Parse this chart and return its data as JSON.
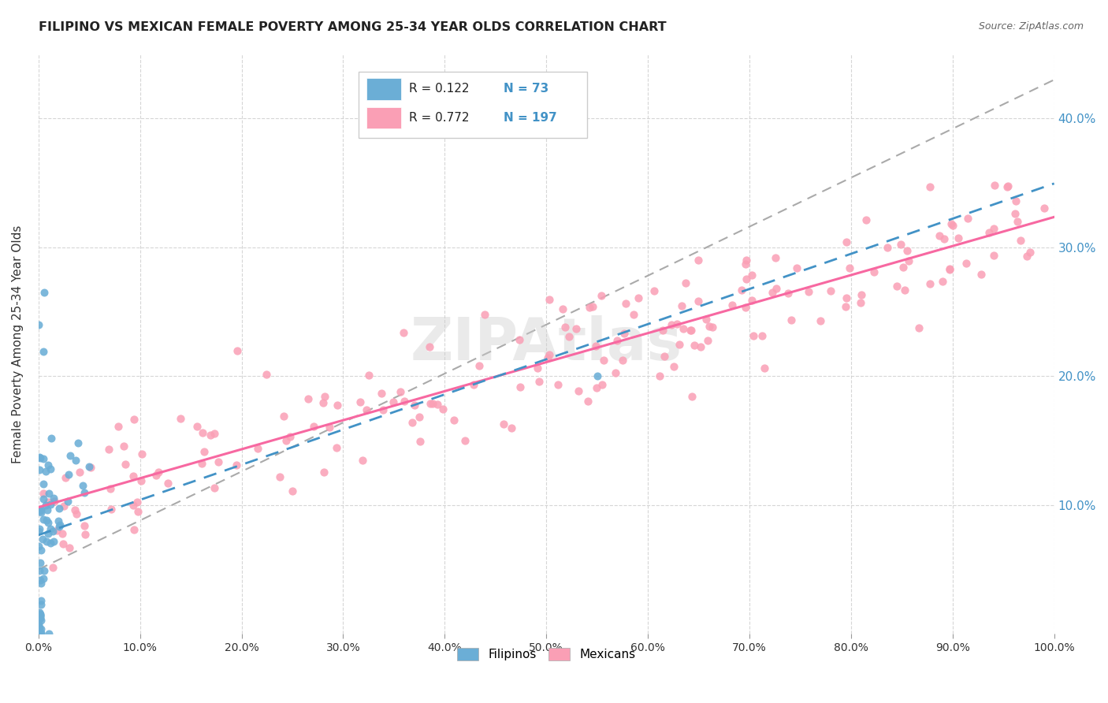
{
  "title": "FILIPINO VS MEXICAN FEMALE POVERTY AMONG 25-34 YEAR OLDS CORRELATION CHART",
  "source": "Source: ZipAtlas.com",
  "ylabel": "Female Poverty Among 25-34 Year Olds",
  "xlim": [
    0,
    1.0
  ],
  "ylim": [
    0,
    0.45
  ],
  "legend_r_filipino": "0.122",
  "legend_n_filipino": "73",
  "legend_r_mexican": "0.772",
  "legend_n_mexican": "197",
  "filipino_color": "#6baed6",
  "mexican_color": "#fa9fb5",
  "filipino_line_color": "#4292c6",
  "mexican_line_color": "#f768a1",
  "dashed_line_color": "#aaaaaa",
  "background_color": "#ffffff",
  "grid_color": "#cccccc",
  "right_tick_color": "#4292c6"
}
